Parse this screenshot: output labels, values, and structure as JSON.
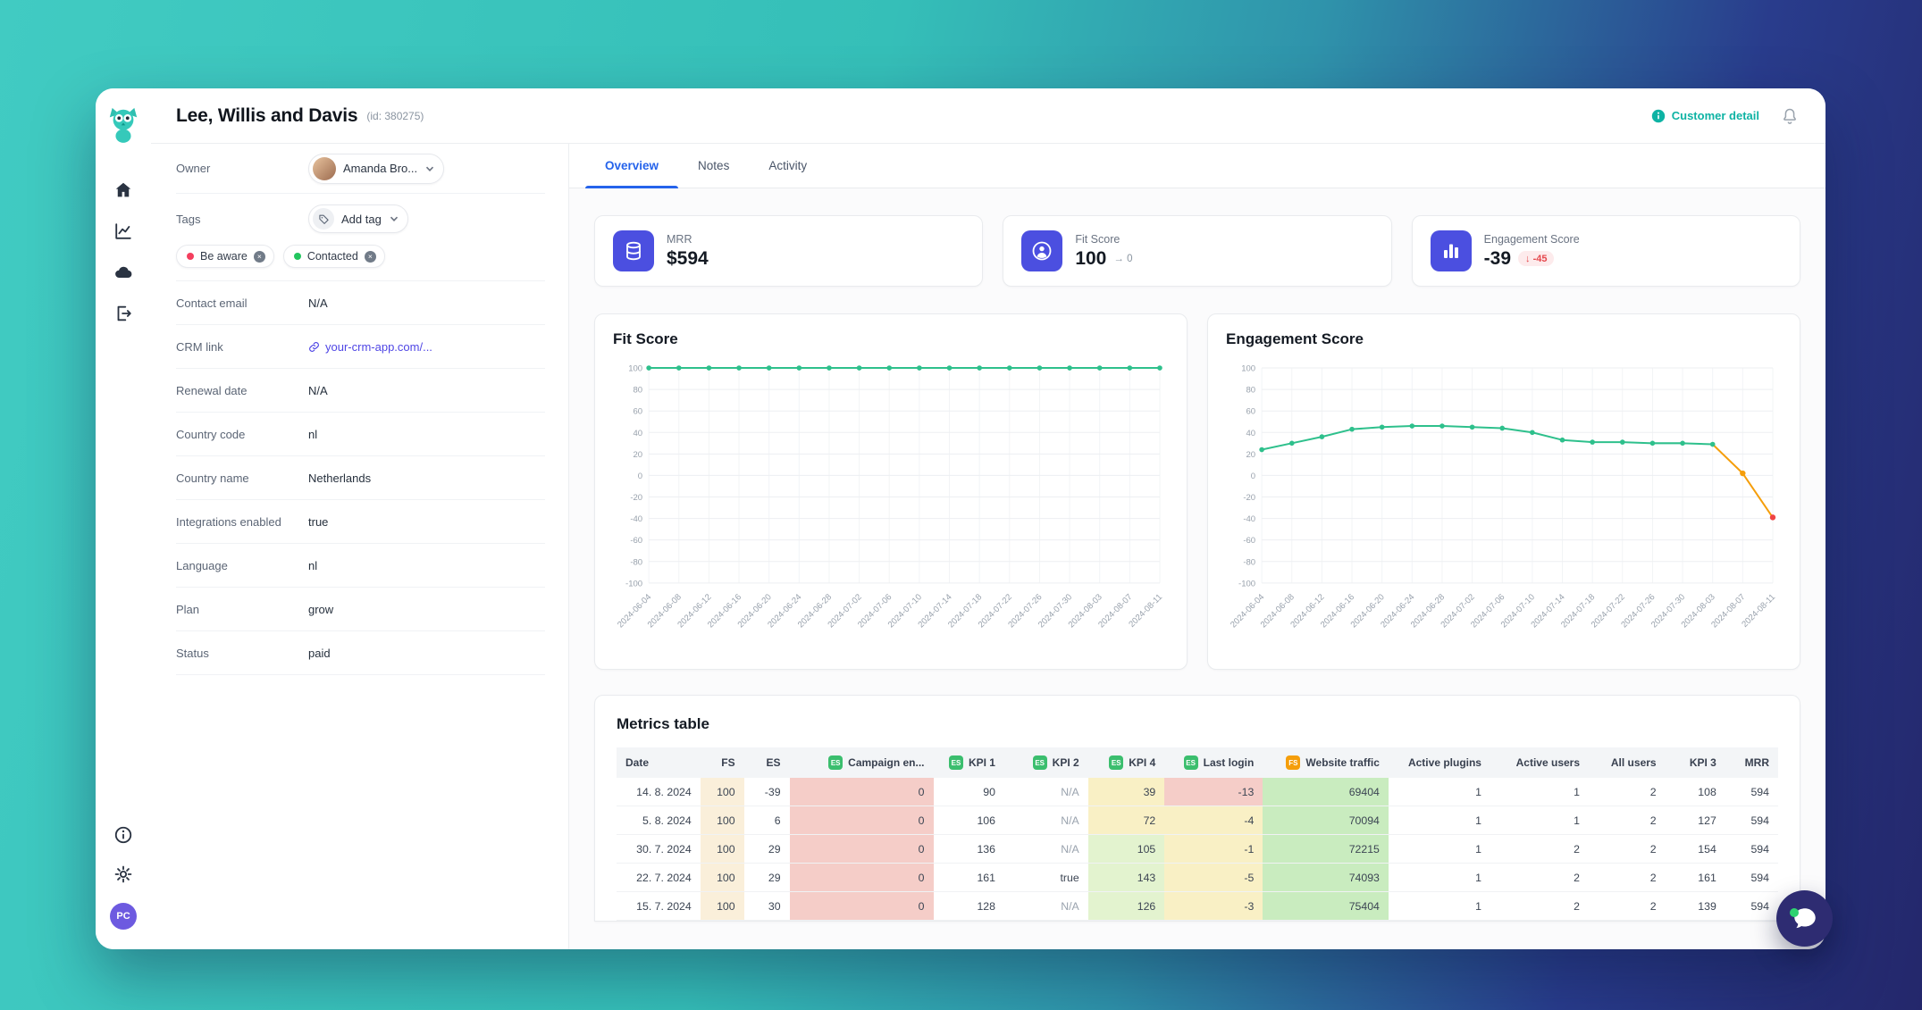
{
  "header": {
    "title": "Lee, Willis and Davis",
    "customer_id": "(id: 380275)",
    "customer_detail_label": "Customer detail"
  },
  "rail": {
    "nav_icons": [
      "home",
      "analytics",
      "cloud",
      "export"
    ],
    "bottom_icons": [
      "info",
      "settings"
    ],
    "avatar_initials": "PC"
  },
  "details": {
    "owner": {
      "label": "Owner",
      "value": "Amanda Bro..."
    },
    "tags": {
      "label": "Tags",
      "add_label": "Add tag",
      "chips": [
        {
          "label": "Be aware",
          "dot_color": "#f43f5e"
        },
        {
          "label": "Contacted",
          "dot_color": "#22c55e"
        }
      ]
    },
    "fields": [
      {
        "label": "Contact email",
        "value": "N/A"
      },
      {
        "label": "CRM link",
        "value": "your-crm-app.com/...",
        "link": true
      },
      {
        "label": "Renewal date",
        "value": "N/A"
      },
      {
        "label": "Country code",
        "value": "nl"
      },
      {
        "label": "Country name",
        "value": "Netherlands"
      },
      {
        "label": "Integrations enabled",
        "value": "true"
      },
      {
        "label": "Language",
        "value": "nl"
      },
      {
        "label": "Plan",
        "value": "grow"
      },
      {
        "label": "Status",
        "value": "paid"
      }
    ]
  },
  "tabs": [
    {
      "label": "Overview",
      "active": true
    },
    {
      "label": "Notes",
      "active": false
    },
    {
      "label": "Activity",
      "active": false
    }
  ],
  "kpis": [
    {
      "label": "MRR",
      "value": "$594",
      "icon": "coins-icon"
    },
    {
      "label": "Fit Score",
      "value": "100",
      "trend": "→ 0",
      "icon": "user-circle-icon"
    },
    {
      "label": "Engagement Score",
      "value": "-39",
      "badge": "↓ -45",
      "icon": "bar-chart-icon"
    }
  ],
  "chart_data": [
    {
      "type": "line",
      "title": "Fit Score",
      "x": [
        "2024-06-04",
        "2024-06-08",
        "2024-06-12",
        "2024-06-16",
        "2024-06-20",
        "2024-06-24",
        "2024-06-28",
        "2024-07-02",
        "2024-07-06",
        "2024-07-10",
        "2024-07-14",
        "2024-07-18",
        "2024-07-22",
        "2024-07-26",
        "2024-07-30",
        "2024-08-03",
        "2024-08-07",
        "2024-08-11"
      ],
      "series": [
        {
          "name": "Fit Score",
          "color": "#2EC08C",
          "values": [
            100,
            100,
            100,
            100,
            100,
            100,
            100,
            100,
            100,
            100,
            100,
            100,
            100,
            100,
            100,
            100,
            100,
            100
          ]
        }
      ],
      "ylim": [
        -100,
        100
      ],
      "ytick_step": 20,
      "grid": true,
      "legend": false
    },
    {
      "type": "line",
      "title": "Engagement Score",
      "x": [
        "2024-06-04",
        "2024-06-08",
        "2024-06-12",
        "2024-06-16",
        "2024-06-20",
        "2024-06-24",
        "2024-06-28",
        "2024-07-02",
        "2024-07-06",
        "2024-07-10",
        "2024-07-14",
        "2024-07-18",
        "2024-07-22",
        "2024-07-26",
        "2024-07-30",
        "2024-08-03",
        "2024-08-07",
        "2024-08-11"
      ],
      "series": [
        {
          "name": "Engagement Score",
          "color": "#2EC08C",
          "values": [
            24,
            30,
            36,
            43,
            45,
            46,
            46,
            45,
            44,
            40,
            33,
            31,
            31,
            30,
            30,
            29,
            2,
            -39
          ],
          "alert_from_index": 15,
          "alert_color": "#F59E0B",
          "last_point_color": "#EF4444"
        }
      ],
      "ylim": [
        -100,
        100
      ],
      "ytick_step": 20,
      "grid": true,
      "legend": false
    }
  ],
  "metrics_table": {
    "title": "Metrics table",
    "badge_colors": {
      "ES": "#3BBE6E",
      "FS": "#F59E0B"
    },
    "cell_colors": {
      "cream": "#FAEFDA",
      "pink": "#F5CDC8",
      "yellow": "#F9F0C5",
      "lightgreen": "#E3F3CF",
      "green": "#C9ECBF"
    },
    "columns": [
      {
        "label": "Date",
        "align": "left"
      },
      {
        "label": "FS",
        "align": "right"
      },
      {
        "label": "ES",
        "align": "right"
      },
      {
        "label": "Campaign en...",
        "badge": "ES",
        "align": "right"
      },
      {
        "label": "KPI 1",
        "badge": "ES",
        "align": "right"
      },
      {
        "label": "KPI 2",
        "badge": "ES",
        "align": "right"
      },
      {
        "label": "KPI 4",
        "badge": "ES",
        "align": "right"
      },
      {
        "label": "Last login",
        "badge": "ES",
        "align": "right"
      },
      {
        "label": "Website traffic",
        "badge": "FS",
        "align": "right"
      },
      {
        "label": "Active plugins",
        "align": "right"
      },
      {
        "label": "Active users",
        "align": "right"
      },
      {
        "label": "All users",
        "align": "right"
      },
      {
        "label": "KPI 3",
        "align": "right"
      },
      {
        "label": "MRR",
        "align": "right"
      }
    ],
    "rows": [
      {
        "cells": [
          "14. 8. 2024",
          "100",
          "-39",
          "0",
          "90",
          "N/A",
          "39",
          "-13",
          "69404",
          "1",
          "1",
          "2",
          "108",
          "594"
        ],
        "bg": [
          null,
          "cream",
          null,
          "pink",
          null,
          null,
          "yellow",
          "pink",
          "green",
          null,
          null,
          null,
          null,
          null
        ]
      },
      {
        "cells": [
          "5. 8. 2024",
          "100",
          "6",
          "0",
          "106",
          "N/A",
          "72",
          "-4",
          "70094",
          "1",
          "1",
          "2",
          "127",
          "594"
        ],
        "bg": [
          null,
          "cream",
          null,
          "pink",
          null,
          null,
          "yellow",
          "yellow",
          "green",
          null,
          null,
          null,
          null,
          null
        ]
      },
      {
        "cells": [
          "30. 7. 2024",
          "100",
          "29",
          "0",
          "136",
          "N/A",
          "105",
          "-1",
          "72215",
          "1",
          "2",
          "2",
          "154",
          "594"
        ],
        "bg": [
          null,
          "cream",
          null,
          "pink",
          null,
          null,
          "lightgreen",
          "yellow",
          "green",
          null,
          null,
          null,
          null,
          null
        ]
      },
      {
        "cells": [
          "22. 7. 2024",
          "100",
          "29",
          "0",
          "161",
          "true",
          "143",
          "-5",
          "74093",
          "1",
          "2",
          "2",
          "161",
          "594"
        ],
        "bg": [
          null,
          "cream",
          null,
          "pink",
          null,
          null,
          "lightgreen",
          "yellow",
          "green",
          null,
          null,
          null,
          null,
          null
        ]
      },
      {
        "cells": [
          "15. 7. 2024",
          "100",
          "30",
          "0",
          "128",
          "N/A",
          "126",
          "-3",
          "75404",
          "1",
          "2",
          "2",
          "139",
          "594"
        ],
        "bg": [
          null,
          "cream",
          null,
          "pink",
          null,
          null,
          "lightgreen",
          "yellow",
          "green",
          null,
          null,
          null,
          null,
          null
        ]
      }
    ]
  },
  "chat": {
    "status": "online"
  }
}
